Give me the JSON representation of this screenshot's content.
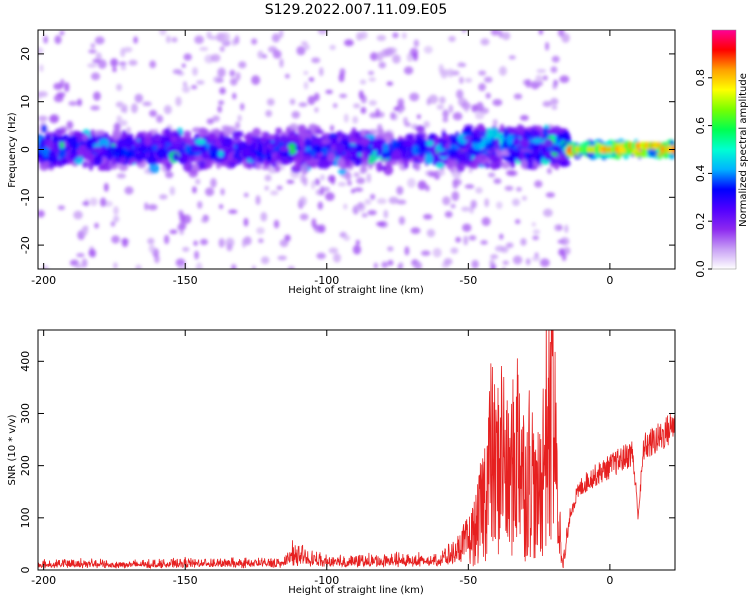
{
  "title": "S129.2022.007.11.09.E05",
  "chart_data": [
    {
      "type": "heatmap",
      "xlabel": "Height of straight line (km)",
      "ylabel": "Frequency (Hz)",
      "xlim": [
        -202,
        23
      ],
      "ylim": [
        -25,
        25
      ],
      "xticks": [
        -200,
        -150,
        -100,
        -50,
        0
      ],
      "yticks": [
        -20,
        -10,
        0,
        10,
        20
      ],
      "grid": false,
      "colorbar": {
        "label": "Normalized spectral amplitude",
        "range": [
          0,
          1
        ],
        "ticks": [
          "0.0",
          "0.2",
          "0.4",
          "0.6",
          "0.8"
        ],
        "colormap": [
          "#ffffff",
          "#c8a0f5",
          "#8c28f0",
          "#5000ff",
          "#0000ff",
          "#00b4ff",
          "#00ffd2",
          "#00ff50",
          "#78ff00",
          "#ffff00",
          "#ffa000",
          "#ff0000",
          "#ff0096"
        ]
      },
      "bands": [
        {
          "x_range": [
            -202,
            -15
          ],
          "center_freq": 0,
          "half_width": 5,
          "peak_amplitude": 0.35
        },
        {
          "x_range": [
            -52,
            -15
          ],
          "center_freq": 2,
          "half_width": 3,
          "peak_amplitude": 0.45
        },
        {
          "x_range": [
            -15,
            23
          ],
          "center_freq": 0,
          "half_width": 1.5,
          "peak_amplitude": 0.85
        }
      ]
    },
    {
      "type": "line",
      "xlabel": "Height of straight line (km)",
      "ylabel": "SNR (10 * v/v)",
      "xlim": [
        -202,
        23
      ],
      "ylim": [
        0,
        460
      ],
      "xticks": [
        -200,
        -150,
        -100,
        -50,
        0
      ],
      "yticks": [
        0,
        100,
        200,
        300,
        400
      ],
      "grid": false,
      "line_color": "#e62020",
      "series": [
        {
          "name": "",
          "x": [
            -202,
            -190,
            -175,
            -160,
            -145,
            -130,
            -115,
            -112,
            -100,
            -85,
            -70,
            -60,
            -55,
            -50,
            -47,
            -44,
            -42,
            -40,
            -38,
            -36,
            -34,
            -32,
            -30,
            -28,
            -26,
            -24,
            -22,
            -21,
            -20.5,
            -20,
            -19,
            -18,
            -17,
            -16,
            -15,
            -14,
            -12,
            -10,
            -7,
            -4,
            -1,
            2,
            5,
            8,
            10,
            12,
            15,
            18,
            21,
            23
          ],
          "y": [
            10,
            12,
            10,
            11,
            13,
            12,
            14,
            28,
            15,
            16,
            18,
            20,
            30,
            55,
            80,
            150,
            220,
            180,
            240,
            160,
            200,
            260,
            150,
            210,
            120,
            180,
            300,
            240,
            460,
            320,
            180,
            90,
            40,
            20,
            60,
            110,
            140,
            160,
            175,
            185,
            195,
            205,
            215,
            225,
            105,
            235,
            245,
            255,
            270,
            285
          ]
        }
      ]
    }
  ]
}
